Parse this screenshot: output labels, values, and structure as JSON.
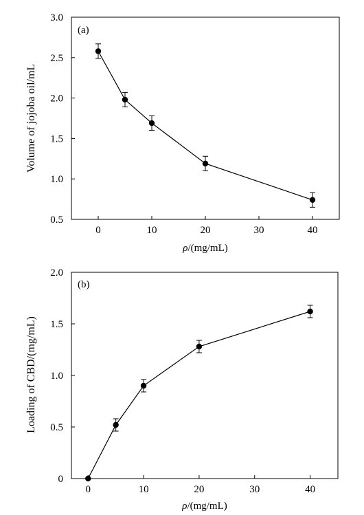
{
  "chart_data": [
    {
      "type": "line",
      "panel_label": "(a)",
      "xlabel_symbol": "ρ",
      "xlabel_unit": "/(mg/mL)",
      "ylabel": "Volume of jojoba oil/mL",
      "xlim": [
        -5,
        45
      ],
      "ylim": [
        0.5,
        3.0
      ],
      "xticks": [
        0,
        10,
        20,
        30,
        40
      ],
      "yticks": [
        "0.5",
        "1.0",
        "1.5",
        "2.0",
        "2.5",
        "3.0"
      ],
      "grid": false,
      "series": [
        {
          "x": [
            0,
            5,
            10,
            20,
            40
          ],
          "values": [
            2.58,
            1.98,
            1.69,
            1.19,
            0.74
          ],
          "error": [
            0.09,
            0.09,
            0.09,
            0.09,
            0.09
          ]
        }
      ]
    },
    {
      "type": "line",
      "panel_label": "(b)",
      "xlabel_symbol": "ρ",
      "xlabel_unit": "/(mg/mL)",
      "ylabel": "Loading of CBD/(mg/mL)",
      "xlim": [
        -3,
        45
      ],
      "ylim": [
        0,
        2.0
      ],
      "xticks": [
        0,
        10,
        20,
        30,
        40
      ],
      "yticks": [
        "0",
        "0.5",
        "1.0",
        "1.5",
        "2.0"
      ],
      "grid": false,
      "series": [
        {
          "x": [
            0,
            5,
            10,
            20,
            40
          ],
          "values": [
            0.0,
            0.52,
            0.9,
            1.28,
            1.62
          ],
          "error": [
            0.0,
            0.06,
            0.06,
            0.06,
            0.06
          ]
        }
      ]
    }
  ]
}
